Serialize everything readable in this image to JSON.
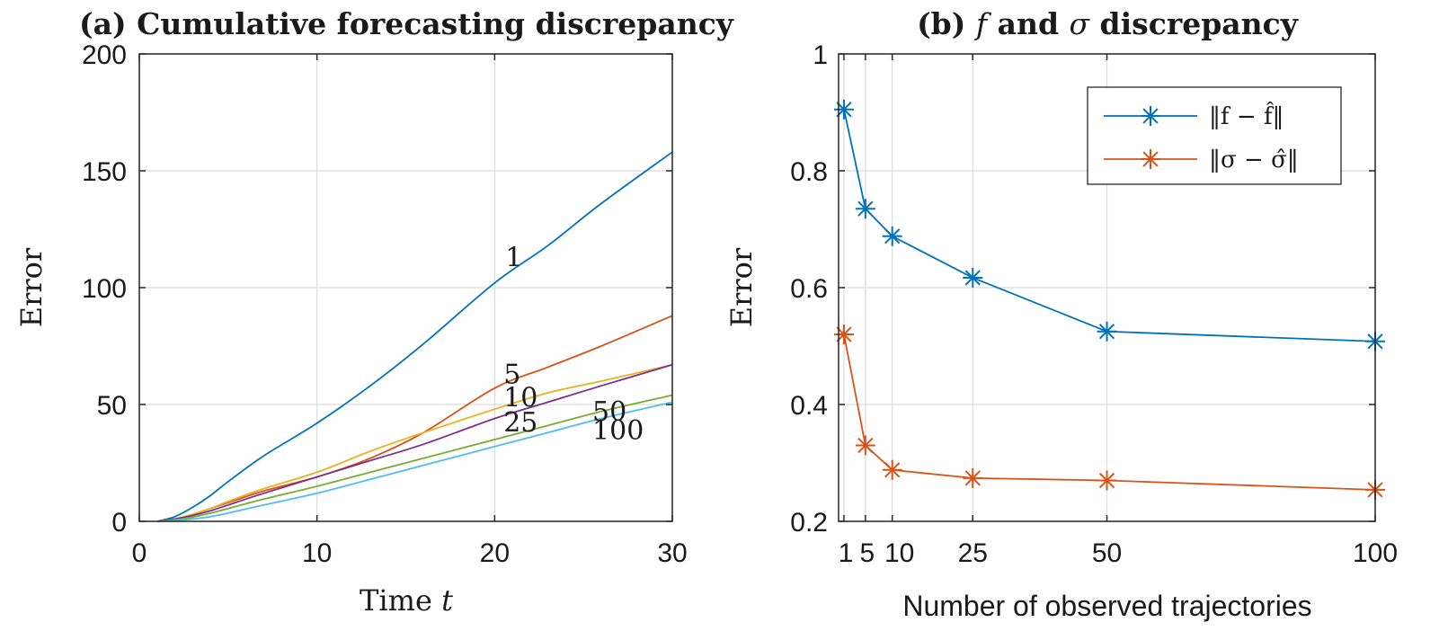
{
  "chart_data": [
    {
      "type": "line",
      "title": "(a) Cumulative forecasting discrepancy",
      "xlabel": "Time",
      "xlabel_var": "t",
      "ylabel": "Error",
      "xlim": [
        0,
        30
      ],
      "ylim": [
        0,
        200
      ],
      "xticks": [
        0,
        10,
        20,
        30
      ],
      "yticks": [
        0,
        50,
        100,
        150,
        200
      ],
      "grid": true,
      "series": [
        {
          "name": "1",
          "color": "#0072BD",
          "x": [
            1,
            2,
            3,
            4,
            5,
            7,
            10,
            13,
            16,
            20,
            23,
            26,
            30
          ],
          "y": [
            0,
            2,
            6,
            11,
            17,
            28,
            42,
            58,
            76,
            102,
            118,
            136,
            158
          ],
          "label": "1"
        },
        {
          "name": "5",
          "color": "#D95319",
          "x": [
            1,
            2,
            3,
            4,
            5,
            7,
            10,
            13,
            16,
            20,
            23,
            26,
            30
          ],
          "y": [
            0,
            1,
            3,
            5.5,
            8,
            13,
            19,
            27,
            38,
            57,
            66,
            75,
            88
          ],
          "label": "5"
        },
        {
          "name": "10",
          "color": "#EDB120",
          "x": [
            1,
            2,
            3,
            4,
            5,
            7,
            10,
            13,
            16,
            20,
            23,
            26,
            30
          ],
          "y": [
            0,
            1,
            3,
            5.5,
            8.5,
            14,
            21,
            30,
            38,
            48,
            55,
            60,
            67
          ],
          "label": "10"
        },
        {
          "name": "25",
          "color": "#7E2F8E",
          "x": [
            1,
            2,
            3,
            4,
            5,
            7,
            10,
            13,
            16,
            20,
            23,
            26,
            30
          ],
          "y": [
            0,
            1,
            2.5,
            4.5,
            7,
            12,
            19,
            26,
            33,
            44,
            51,
            58,
            67
          ],
          "label": "25"
        },
        {
          "name": "50",
          "color": "#77AC30",
          "x": [
            1,
            2,
            3,
            4,
            5,
            7,
            10,
            13,
            16,
            20,
            23,
            26,
            30
          ],
          "y": [
            0,
            0.6,
            1.8,
            3.5,
            5.5,
            9.5,
            15,
            21,
            27,
            35,
            41,
            47,
            54
          ],
          "label": "50"
        },
        {
          "name": "100",
          "color": "#4DBEEE",
          "x": [
            1,
            2,
            3,
            4,
            5,
            7,
            10,
            13,
            16,
            20,
            23,
            26,
            30
          ],
          "y": [
            0,
            0.3,
            1,
            2,
            3.5,
            7,
            12,
            18,
            24,
            32,
            38,
            44,
            51
          ],
          "label": "100"
        }
      ]
    },
    {
      "type": "line",
      "title_parts": [
        "(b) ",
        "f",
        " and ",
        "σ",
        " discrepancy"
      ],
      "xlabel": "Number of observed trajectories",
      "ylabel": "Error",
      "x": [
        1,
        5,
        10,
        25,
        50,
        100
      ],
      "xlim": [
        0,
        100
      ],
      "ylim": [
        0.2,
        1
      ],
      "xticks": [
        1,
        5,
        10,
        25,
        50,
        100
      ],
      "xtick_labels": [
        "1",
        "5",
        "10",
        "25",
        "50",
        "100"
      ],
      "yticks": [
        0.2,
        0.4,
        0.6,
        0.8,
        1
      ],
      "ytick_labels": [
        "0.2",
        "0.4",
        "0.6",
        "0.8",
        "1"
      ],
      "grid": true,
      "legend_position": "top-right",
      "marker": "asterisk",
      "series": [
        {
          "name": "‖f − f̂‖",
          "color": "#0072BD",
          "values": [
            0.905,
            0.735,
            0.688,
            0.617,
            0.525,
            0.508
          ]
        },
        {
          "name": "‖σ − σ̂‖",
          "color": "#D95319",
          "values": [
            0.52,
            0.33,
            0.288,
            0.274,
            0.27,
            0.254
          ]
        }
      ]
    }
  ]
}
